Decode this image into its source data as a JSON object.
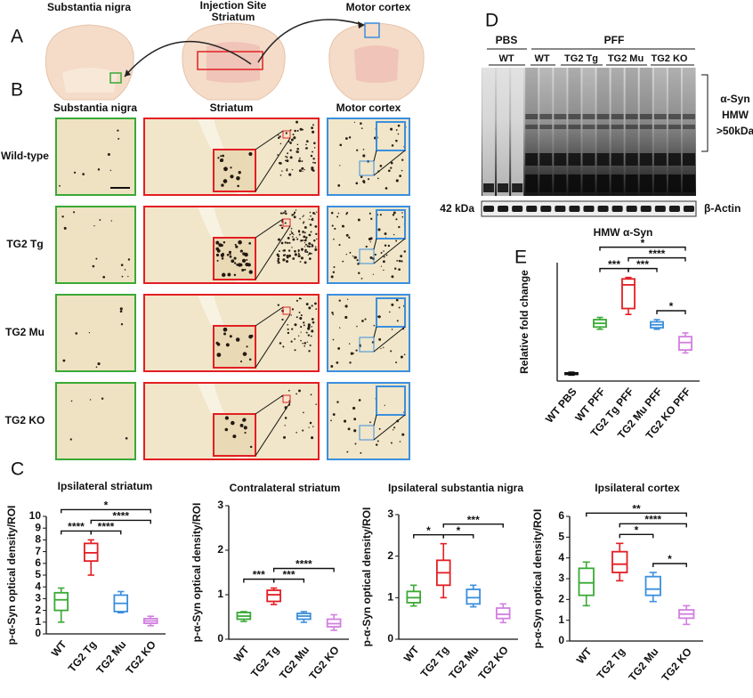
{
  "panel_labels": [
    "A",
    "B",
    "C",
    "D",
    "E"
  ],
  "panel_a": {
    "labels": [
      "Substantia nigra",
      "Injection Site",
      "Striatum",
      "Motor cortex"
    ]
  },
  "panel_b": {
    "columns": [
      "Substantia nigra",
      "Striatum",
      "Motor cortex"
    ],
    "rows": [
      "Wild-type",
      "TG2 Tg",
      "TG2 Mu",
      "TG2 KO"
    ]
  },
  "panel_d": {
    "groups": [
      "PBS",
      "PFF"
    ],
    "lanes": [
      "WT",
      "WT",
      "TG2 Tg",
      "TG2 Mu",
      "TG2 KO"
    ],
    "hmw_label": [
      "α-Syn",
      "HMW",
      ">50kDa"
    ],
    "marker": "42 kDa",
    "loading": "β-Actin"
  },
  "chart_data": [
    {
      "type": "box",
      "title": "Ipsilateral striatum",
      "ylabel": "p-α-Syn optical density/ROI",
      "categories": [
        "WT",
        "TG2 Tg",
        "TG2 Mu",
        "TG2 KO"
      ],
      "ylim": [
        0,
        10
      ],
      "yticks": [
        0,
        1,
        2,
        3,
        4,
        5,
        6,
        7,
        8,
        9,
        10
      ],
      "boxes": [
        {
          "color": "#3aa935",
          "whislo": 1.0,
          "q1": 2.0,
          "med": 2.9,
          "q3": 3.5,
          "whishi": 3.9
        },
        {
          "color": "#e31e24",
          "whislo": 5.0,
          "q1": 6.2,
          "med": 6.9,
          "q3": 7.7,
          "whishi": 8.0
        },
        {
          "color": "#3b8fde",
          "whislo": 1.8,
          "q1": 1.9,
          "med": 2.6,
          "q3": 3.3,
          "whishi": 3.6
        },
        {
          "color": "#d27fe0",
          "whislo": 0.7,
          "q1": 0.9,
          "med": 1.1,
          "q3": 1.3,
          "whishi": 1.5
        }
      ],
      "significance": [
        {
          "from": 0,
          "to": 1,
          "label": "****"
        },
        {
          "from": 1,
          "to": 2,
          "label": "****"
        },
        {
          "from": 1,
          "to": 3,
          "label": "****"
        },
        {
          "from": 0,
          "to": 3,
          "label": "*"
        }
      ]
    },
    {
      "type": "box",
      "title": "Contralateral striatum",
      "ylabel": "p-α-Syn optical density/ROI",
      "categories": [
        "WT",
        "TG2 Tg",
        "TG2 Mu",
        "TG2 KO"
      ],
      "ylim": [
        0,
        3
      ],
      "yticks": [
        0,
        1,
        2,
        3
      ],
      "boxes": [
        {
          "color": "#3aa935",
          "whislo": 0.4,
          "q1": 0.45,
          "med": 0.52,
          "q3": 0.6,
          "whishi": 0.62
        },
        {
          "color": "#e31e24",
          "whislo": 0.78,
          "q1": 0.85,
          "med": 1.0,
          "q3": 1.1,
          "whishi": 1.15
        },
        {
          "color": "#3b8fde",
          "whislo": 0.38,
          "q1": 0.45,
          "med": 0.52,
          "q3": 0.58,
          "whishi": 0.62
        },
        {
          "color": "#d27fe0",
          "whislo": 0.2,
          "q1": 0.28,
          "med": 0.35,
          "q3": 0.45,
          "whishi": 0.55
        }
      ],
      "significance": [
        {
          "from": 0,
          "to": 1,
          "label": "***"
        },
        {
          "from": 1,
          "to": 2,
          "label": "***"
        },
        {
          "from": 1,
          "to": 3,
          "label": "****"
        }
      ]
    },
    {
      "type": "box",
      "title": "Ipsilateral substantia nigra",
      "ylabel": "p-α-Syn optical density/ROI",
      "categories": [
        "WT",
        "TG2 Tg",
        "TG2 Mu",
        "TG2 KO"
      ],
      "ylim": [
        0,
        3
      ],
      "yticks": [
        0,
        1,
        2,
        3
      ],
      "boxes": [
        {
          "color": "#3aa935",
          "whislo": 0.8,
          "q1": 0.88,
          "med": 1.0,
          "q3": 1.15,
          "whishi": 1.3
        },
        {
          "color": "#e31e24",
          "whislo": 1.0,
          "q1": 1.3,
          "med": 1.6,
          "q3": 1.9,
          "whishi": 2.3
        },
        {
          "color": "#3b8fde",
          "whislo": 0.78,
          "q1": 0.85,
          "med": 1.0,
          "q3": 1.2,
          "whishi": 1.3
        },
        {
          "color": "#d27fe0",
          "whislo": 0.4,
          "q1": 0.5,
          "med": 0.6,
          "q3": 0.75,
          "whishi": 0.85
        }
      ],
      "significance": [
        {
          "from": 0,
          "to": 1,
          "label": "*"
        },
        {
          "from": 1,
          "to": 2,
          "label": "*"
        },
        {
          "from": 1,
          "to": 3,
          "label": "***"
        }
      ]
    },
    {
      "type": "box",
      "title": "Ipsilateral cortex",
      "ylabel": "p-α-Syn optical density/ROI",
      "categories": [
        "WT",
        "TG2 Tg",
        "TG2 Mu",
        "TG2 KO"
      ],
      "ylim": [
        0,
        6
      ],
      "yticks": [
        0,
        1,
        2,
        3,
        4,
        5,
        6
      ],
      "boxes": [
        {
          "color": "#3aa935",
          "whislo": 1.7,
          "q1": 2.2,
          "med": 2.8,
          "q3": 3.5,
          "whishi": 3.8
        },
        {
          "color": "#e31e24",
          "whislo": 2.9,
          "q1": 3.3,
          "med": 3.7,
          "q3": 4.3,
          "whishi": 4.7
        },
        {
          "color": "#3b8fde",
          "whislo": 1.9,
          "q1": 2.2,
          "med": 2.5,
          "q3": 3.1,
          "whishi": 3.3
        },
        {
          "color": "#d27fe0",
          "whislo": 0.8,
          "q1": 1.1,
          "med": 1.3,
          "q3": 1.5,
          "whishi": 1.7
        }
      ],
      "significance": [
        {
          "from": 1,
          "to": 2,
          "label": "*"
        },
        {
          "from": 2,
          "to": 3,
          "label": "*"
        },
        {
          "from": 1,
          "to": 3,
          "label": "****"
        },
        {
          "from": 0,
          "to": 3,
          "label": "**"
        }
      ]
    },
    {
      "type": "box",
      "title": "HMW α-Syn",
      "ylabel": "Relative fold change",
      "categories": [
        "WT PBS",
        "WT PFF",
        "TG2 Tg PFF",
        "TG2 Mu PFF",
        "TG2 KO PFF"
      ],
      "ylim": [
        0,
        16
      ],
      "boxes": [
        {
          "color": "#111111",
          "whislo": 0.8,
          "q1": 0.9,
          "med": 1.0,
          "q3": 1.1,
          "whishi": 1.2
        },
        {
          "color": "#3aa935",
          "whislo": 7.0,
          "q1": 7.3,
          "med": 7.8,
          "q3": 8.3,
          "whishi": 8.6
        },
        {
          "color": "#e31e24",
          "whislo": 9.0,
          "q1": 9.8,
          "med": 13.0,
          "q3": 13.8,
          "whishi": 14.0
        },
        {
          "color": "#3b8fde",
          "whislo": 7.0,
          "q1": 7.2,
          "med": 7.6,
          "q3": 8.0,
          "whishi": 8.3
        },
        {
          "color": "#d27fe0",
          "whislo": 3.8,
          "q1": 4.2,
          "med": 5.2,
          "q3": 6.0,
          "whishi": 6.5
        }
      ],
      "significance": [
        {
          "from": 1,
          "to": 2,
          "label": "***"
        },
        {
          "from": 2,
          "to": 3,
          "label": "***"
        },
        {
          "from": 3,
          "to": 4,
          "label": "*"
        },
        {
          "from": 2,
          "to": 4,
          "label": "****"
        },
        {
          "from": 1,
          "to": 4,
          "label": "*"
        }
      ]
    }
  ]
}
